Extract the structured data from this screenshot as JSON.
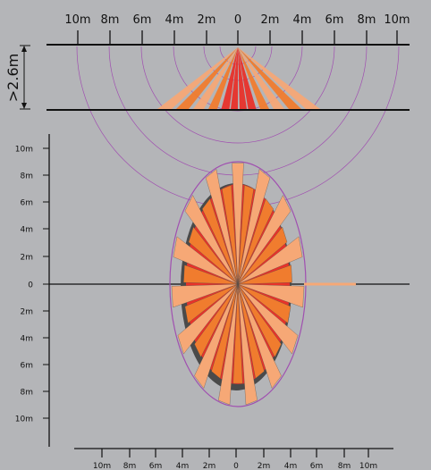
{
  "side_view": {
    "height_label": ">2.6m",
    "scale_labels": [
      "10m",
      "8m",
      "6m",
      "4m",
      "2m",
      "0",
      "2m",
      "4m",
      "6m",
      "8m",
      "10m"
    ]
  },
  "top_view": {
    "y_labels": [
      "10m",
      "8m",
      "6m",
      "4m",
      "2m",
      "0",
      "2m",
      "4m",
      "6m",
      "8m",
      "10m"
    ],
    "x_labels": [
      "10m",
      "8m",
      "6m",
      "4m",
      "2m",
      "0",
      "2m",
      "4m",
      "6m",
      "8m",
      "10m"
    ]
  },
  "colors": {
    "background": "#b4b5b8",
    "zone_red": "#e8322a",
    "zone_orange": "#f07c2e",
    "zone_light": "#f6a876",
    "arc_purple": "#a050b0",
    "shadow": "#4a4a4a",
    "line": "#111111"
  }
}
